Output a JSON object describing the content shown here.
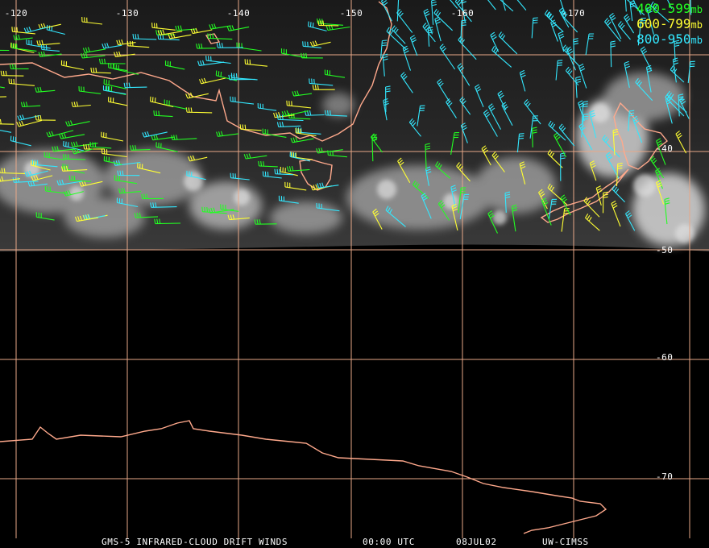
{
  "colors": {
    "grid": "#e8a888",
    "coast": "#ffa98c",
    "band_400_599": "#22ff22",
    "band_600_799": "#ffff33",
    "band_800_950": "#33e8ff",
    "labels": "#ffffff"
  },
  "lon_labels": [
    "-120",
    "-130",
    "-140",
    "-150",
    "-160",
    "-170"
  ],
  "lat_labels": [
    "-40",
    "-50",
    "-60",
    "-70"
  ],
  "legend": [
    {
      "range": "400-599",
      "unit": "mb",
      "color": "#22ff22"
    },
    {
      "range": "600-799",
      "unit": "mb",
      "color": "#ffff33"
    },
    {
      "range": "800-950",
      "unit": "mb",
      "color": "#33e8ff"
    }
  ],
  "caption": {
    "product": "GMS-5 INFRARED-CLOUD DRIFT WINDS",
    "time": "00:00 UTC",
    "date": "08JUL02",
    "source": "UW-CIMSS"
  }
}
